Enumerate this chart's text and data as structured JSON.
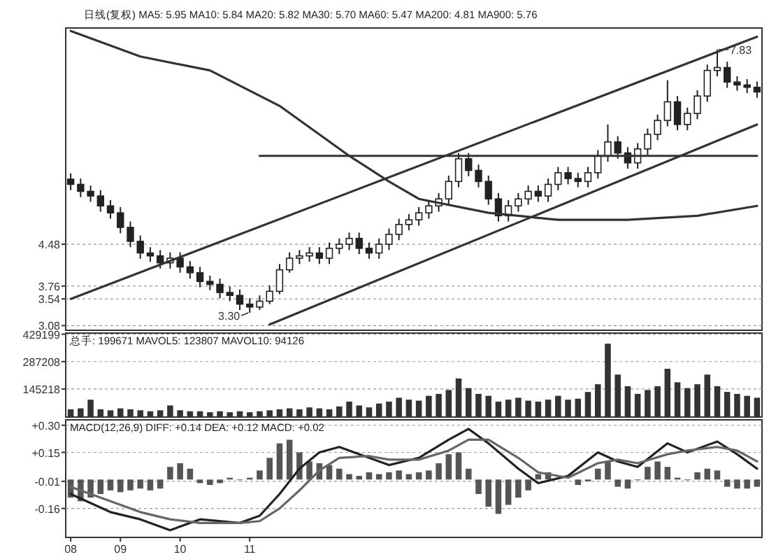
{
  "chart_data": [
    {
      "type": "candlestick",
      "title": "日线(复权) MA5: 5.95 MA10: 5.84 MA20: 5.82 MA30: 5.70 MA60: 5.47 MA200: 4.81 MA900: 5.76",
      "tick_labels": "y",
      "grid": "y",
      "color": "#222222",
      "categories": [
        null,
        null,
        null,
        null,
        null,
        null,
        null,
        null,
        null,
        null,
        null,
        null,
        null,
        null,
        null,
        null,
        null,
        null,
        null,
        null,
        null,
        null,
        null,
        null,
        null,
        null,
        null,
        null,
        null,
        null,
        null,
        null,
        null,
        null,
        null,
        null,
        null,
        null,
        null,
        null,
        null,
        null,
        null,
        null,
        null,
        null,
        null,
        null,
        null,
        null,
        null,
        null,
        null,
        null,
        null,
        null,
        null,
        null,
        null,
        null,
        null,
        null,
        null,
        null,
        null,
        null,
        null,
        null,
        null,
        null
      ],
      "ylim": [
        3.0,
        8.2
      ],
      "yticks": [
        3.08,
        3.54,
        3.76,
        4.48
      ],
      "ohlc": [
        [
          5.6,
          5.7,
          5.41,
          5.51
        ],
        [
          5.51,
          5.61,
          5.29,
          5.39
        ],
        [
          5.39,
          5.49,
          5.21,
          5.31
        ],
        [
          5.31,
          5.41,
          5.04,
          5.14
        ],
        [
          5.14,
          5.24,
          4.92,
          5.02
        ],
        [
          5.02,
          5.12,
          4.67,
          4.77
        ],
        [
          4.77,
          4.87,
          4.43,
          4.53
        ],
        [
          4.53,
          4.63,
          4.23,
          4.33
        ],
        [
          4.33,
          4.43,
          4.18,
          4.28
        ],
        [
          4.28,
          4.38,
          4.06,
          4.16
        ],
        [
          4.16,
          4.34,
          4.06,
          4.24
        ],
        [
          4.24,
          4.34,
          3.99,
          4.09
        ],
        [
          4.09,
          4.19,
          3.89,
          3.99
        ],
        [
          3.99,
          4.09,
          3.74,
          3.84
        ],
        [
          3.84,
          3.94,
          3.69,
          3.79
        ],
        [
          3.79,
          3.89,
          3.55,
          3.65
        ],
        [
          3.65,
          3.75,
          3.5,
          3.6
        ],
        [
          3.6,
          3.7,
          3.35,
          3.45
        ],
        [
          3.45,
          3.55,
          3.3,
          3.4
        ],
        [
          3.4,
          3.6,
          3.35,
          3.5
        ],
        [
          3.5,
          3.77,
          3.45,
          3.67
        ],
        [
          3.67,
          4.14,
          3.62,
          4.04
        ],
        [
          4.04,
          4.34,
          3.99,
          4.24
        ],
        [
          4.24,
          4.38,
          4.14,
          4.28
        ],
        [
          4.28,
          4.43,
          4.18,
          4.33
        ],
        [
          4.33,
          4.43,
          4.14,
          4.24
        ],
        [
          4.24,
          4.51,
          4.14,
          4.41
        ],
        [
          4.41,
          4.58,
          4.31,
          4.48
        ],
        [
          4.48,
          4.68,
          4.38,
          4.58
        ],
        [
          4.58,
          4.68,
          4.31,
          4.41
        ],
        [
          4.41,
          4.51,
          4.23,
          4.33
        ],
        [
          4.33,
          4.58,
          4.23,
          4.48
        ],
        [
          4.48,
          4.75,
          4.38,
          4.65
        ],
        [
          4.65,
          4.92,
          4.55,
          4.82
        ],
        [
          4.82,
          5.0,
          4.72,
          4.9
        ],
        [
          4.9,
          5.12,
          4.8,
          5.02
        ],
        [
          5.02,
          5.24,
          4.92,
          5.14
        ],
        [
          5.14,
          5.36,
          5.04,
          5.26
        ],
        [
          5.26,
          5.66,
          5.16,
          5.56
        ],
        [
          5.56,
          6.05,
          5.46,
          5.95
        ],
        [
          5.95,
          6.05,
          5.65,
          5.75
        ],
        [
          5.75,
          5.85,
          5.46,
          5.56
        ],
        [
          5.56,
          5.66,
          5.16,
          5.26
        ],
        [
          5.26,
          5.36,
          4.87,
          4.97
        ],
        [
          4.97,
          5.24,
          4.87,
          5.14
        ],
        [
          5.14,
          5.36,
          5.04,
          5.26
        ],
        [
          5.26,
          5.49,
          5.16,
          5.39
        ],
        [
          5.39,
          5.49,
          5.21,
          5.31
        ],
        [
          5.31,
          5.61,
          5.21,
          5.51
        ],
        [
          5.51,
          5.81,
          5.41,
          5.71
        ],
        [
          5.71,
          5.81,
          5.51,
          5.61
        ],
        [
          5.61,
          5.71,
          5.46,
          5.56
        ],
        [
          5.56,
          5.81,
          5.46,
          5.71
        ],
        [
          5.71,
          6.1,
          5.61,
          6.0
        ],
        [
          6.0,
          6.54,
          5.9,
          6.24
        ],
        [
          6.24,
          6.34,
          5.95,
          6.05
        ],
        [
          6.05,
          6.15,
          5.78,
          5.88
        ],
        [
          5.88,
          6.22,
          5.78,
          6.12
        ],
        [
          6.12,
          6.47,
          6.02,
          6.37
        ],
        [
          6.37,
          6.71,
          6.27,
          6.61
        ],
        [
          6.61,
          7.3,
          6.51,
          6.93
        ],
        [
          6.93,
          7.03,
          6.44,
          6.54
        ],
        [
          6.54,
          6.83,
          6.44,
          6.73
        ],
        [
          6.73,
          7.13,
          6.63,
          7.03
        ],
        [
          7.03,
          7.57,
          6.93,
          7.47
        ],
        [
          7.47,
          7.83,
          7.37,
          7.52
        ],
        [
          7.52,
          7.62,
          7.17,
          7.27
        ],
        [
          7.27,
          7.37,
          7.12,
          7.22
        ],
        [
          7.22,
          7.32,
          7.08,
          7.18
        ],
        [
          7.18,
          7.28,
          7.0,
          7.1
        ]
      ],
      "series": [
        {
          "type": "line",
          "color": "#333333",
          "values": [
            8.15,
            null,
            null,
            null,
            null,
            null,
            null,
            7.71,
            null,
            null,
            null,
            null,
            null,
            null,
            7.47,
            null,
            null,
            null,
            null,
            null,
            null,
            6.86,
            null,
            null,
            null,
            null,
            null,
            null,
            6.0,
            null,
            null,
            null,
            5.56,
            null,
            null,
            5.26,
            null,
            null,
            null,
            null,
            null,
            null,
            5.02,
            null,
            null,
            null,
            null,
            null,
            null,
            4.9,
            null,
            null,
            null,
            null,
            null,
            null,
            4.9,
            null,
            null,
            null,
            null,
            null,
            null,
            4.97,
            null,
            null,
            null,
            null,
            null,
            5.14
          ]
        },
        {
          "type": "line",
          "color": "#333333",
          "values": [
            3.54,
            null,
            null,
            null,
            null,
            null,
            null,
            null,
            null,
            null,
            null,
            null,
            null,
            null,
            null,
            null,
            null,
            null,
            null,
            null,
            null,
            null,
            null,
            null,
            null,
            null,
            null,
            null,
            null,
            null,
            null,
            null,
            null,
            null,
            null,
            null,
            null,
            null,
            null,
            null,
            null,
            null,
            null,
            null,
            null,
            null,
            null,
            null,
            null,
            null,
            null,
            null,
            null,
            null,
            null,
            null,
            null,
            null,
            null,
            null,
            null,
            null,
            null,
            null,
            null,
            null,
            null,
            null,
            null,
            8.05
          ]
        },
        {
          "type": "line",
          "color": "#333333",
          "values": [
            null,
            null,
            null,
            null,
            null,
            null,
            null,
            null,
            null,
            null,
            null,
            null,
            null,
            null,
            null,
            null,
            null,
            null,
            null,
            null,
            3.1,
            null,
            null,
            null,
            null,
            null,
            null,
            null,
            null,
            null,
            null,
            null,
            null,
            null,
            null,
            null,
            null,
            null,
            null,
            null,
            null,
            null,
            null,
            null,
            null,
            null,
            null,
            null,
            null,
            null,
            null,
            null,
            null,
            null,
            null,
            null,
            null,
            null,
            null,
            null,
            null,
            null,
            null,
            null,
            null,
            null,
            null,
            null,
            null,
            6.54
          ]
        },
        {
          "type": "line",
          "color": "#333333",
          "values": [
            null,
            null,
            null,
            null,
            null,
            null,
            null,
            null,
            null,
            null,
            null,
            null,
            null,
            null,
            null,
            null,
            null,
            null,
            null,
            6.0,
            null,
            null,
            null,
            null,
            null,
            null,
            null,
            null,
            null,
            null,
            null,
            null,
            null,
            null,
            null,
            null,
            null,
            null,
            null,
            null,
            null,
            null,
            null,
            null,
            null,
            null,
            null,
            null,
            null,
            null,
            null,
            null,
            null,
            null,
            null,
            null,
            null,
            null,
            null,
            null,
            null,
            null,
            null,
            null,
            null,
            null,
            null,
            null,
            null,
            6.0
          ]
        }
      ],
      "annotations": [
        "7.83",
        "3.30"
      ]
    },
    {
      "type": "bar",
      "title": "总手: 199671 MAVOL5: 123807 MAVOL10: 94126",
      "tick_labels": "y",
      "grid": "y",
      "color": "#333333",
      "categories": [
        null,
        null,
        null,
        null,
        null,
        null,
        null,
        null,
        null,
        null,
        null,
        null,
        null,
        null,
        null,
        null,
        null,
        null,
        null,
        null,
        null,
        null,
        null,
        null,
        null,
        null,
        null,
        null,
        null,
        null,
        null,
        null,
        null,
        null,
        null,
        null,
        null,
        null,
        null,
        null,
        null,
        null,
        null,
        null,
        null,
        null,
        null,
        null,
        null,
        null,
        null,
        null,
        null,
        null,
        null,
        null,
        null,
        null,
        null,
        null,
        null,
        null,
        null,
        null,
        null,
        null,
        null,
        null,
        null,
        null
      ],
      "ylim": [
        0,
        435000
      ],
      "yticks": [
        145218,
        287208,
        429199
      ],
      "values": [
        40000,
        45000,
        90000,
        40000,
        35000,
        45000,
        40000,
        35000,
        30000,
        35000,
        60000,
        35000,
        30000,
        30000,
        25000,
        30000,
        25000,
        30000,
        25000,
        30000,
        35000,
        40000,
        45000,
        40000,
        50000,
        45000,
        40000,
        55000,
        80000,
        60000,
        50000,
        70000,
        80000,
        100000,
        90000,
        85000,
        110000,
        120000,
        140000,
        200000,
        150000,
        120000,
        110000,
        80000,
        90000,
        100000,
        85000,
        80000,
        90000,
        110000,
        90000,
        95000,
        130000,
        170000,
        380000,
        220000,
        160000,
        120000,
        140000,
        160000,
        250000,
        180000,
        150000,
        170000,
        220000,
        160000,
        130000,
        120000,
        110000,
        100000
      ]
    },
    {
      "type": "bar",
      "title": "MACD(12,26,9) DIFF: +0.14 DEA: +0.12 MACD: +0.02",
      "grid": "y",
      "categories": [
        "08",
        null,
        null,
        null,
        null,
        "09",
        null,
        null,
        null,
        null,
        null,
        "10",
        null,
        null,
        null,
        null,
        null,
        null,
        "11",
        null,
        null,
        null,
        null,
        null,
        null,
        null,
        null,
        null,
        null,
        null,
        null,
        null,
        null,
        null,
        null,
        null,
        null,
        null,
        null,
        null,
        null,
        null,
        null,
        null,
        null,
        null,
        null,
        null,
        null,
        null,
        null,
        null,
        null,
        null,
        null,
        null,
        null,
        null,
        null,
        null,
        null,
        null,
        null,
        null,
        null,
        null,
        null,
        null,
        null,
        null
      ],
      "ylim": [
        -0.32,
        0.33
      ],
      "yticks": [
        {
          "value": 0.3,
          "label": "+0.30"
        },
        {
          "value": 0.15,
          "label": "+0.15"
        },
        {
          "value": -0.01,
          "label": "-0.01"
        },
        {
          "value": -0.16,
          "label": "-0.16"
        }
      ],
      "series": [
        {
          "type": "bar",
          "color": "#555555",
          "values": [
            -0.1,
            -0.12,
            -0.1,
            -0.08,
            -0.06,
            -0.07,
            -0.06,
            -0.05,
            -0.06,
            -0.05,
            0.07,
            0.09,
            0.06,
            -0.02,
            -0.03,
            -0.02,
            0.01,
            0.0,
            0.01,
            0.05,
            0.12,
            0.2,
            0.22,
            0.15,
            0.1,
            0.09,
            0.08,
            0.06,
            0.03,
            0.02,
            0.04,
            0.03,
            0.04,
            0.05,
            0.03,
            0.04,
            0.05,
            0.09,
            0.14,
            0.15,
            0.06,
            -0.08,
            -0.15,
            -0.19,
            -0.14,
            -0.1,
            -0.06,
            0.03,
            0.04,
            null,
            null,
            -0.03,
            -0.01,
            0.06,
            0.1,
            -0.04,
            -0.05,
            0.0,
            0.07,
            0.1,
            0.07,
            0.01,
            0.0,
            0.04,
            0.06,
            0.05,
            -0.04,
            -0.05,
            -0.05,
            -0.04
          ]
        },
        {
          "type": "line",
          "color": "#222222",
          "values": [
            -0.08,
            null,
            null,
            null,
            -0.18,
            null,
            null,
            -0.22,
            null,
            null,
            -0.28,
            null,
            null,
            -0.22,
            null,
            null,
            null,
            -0.24,
            null,
            -0.2,
            null,
            -0.08,
            null,
            0.06,
            null,
            0.15,
            null,
            0.18,
            null,
            null,
            0.12,
            null,
            0.08,
            null,
            null,
            0.12,
            null,
            null,
            0.22,
            null,
            0.28,
            null,
            0.2,
            null,
            null,
            0.06,
            null,
            -0.02,
            null,
            null,
            0.02,
            null,
            null,
            0.15,
            null,
            0.1,
            null,
            0.07,
            null,
            null,
            0.2,
            null,
            0.15,
            null,
            null,
            0.21,
            null,
            0.14,
            null,
            0.06
          ]
        },
        {
          "type": "line",
          "color": "#666666",
          "values": [
            -0.04,
            null,
            null,
            null,
            -0.12,
            null,
            null,
            -0.18,
            null,
            null,
            -0.22,
            null,
            null,
            -0.24,
            null,
            null,
            null,
            -0.24,
            null,
            -0.23,
            null,
            -0.16,
            null,
            -0.06,
            null,
            0.05,
            null,
            0.12,
            null,
            null,
            0.13,
            null,
            0.11,
            null,
            null,
            0.11,
            null,
            null,
            0.16,
            null,
            0.22,
            null,
            0.22,
            null,
            null,
            0.12,
            null,
            0.04,
            null,
            null,
            0.01,
            null,
            null,
            0.09,
            null,
            0.11,
            null,
            0.09,
            null,
            null,
            0.14,
            null,
            0.16,
            null,
            null,
            0.18,
            null,
            0.16,
            null,
            0.1
          ]
        }
      ]
    }
  ]
}
